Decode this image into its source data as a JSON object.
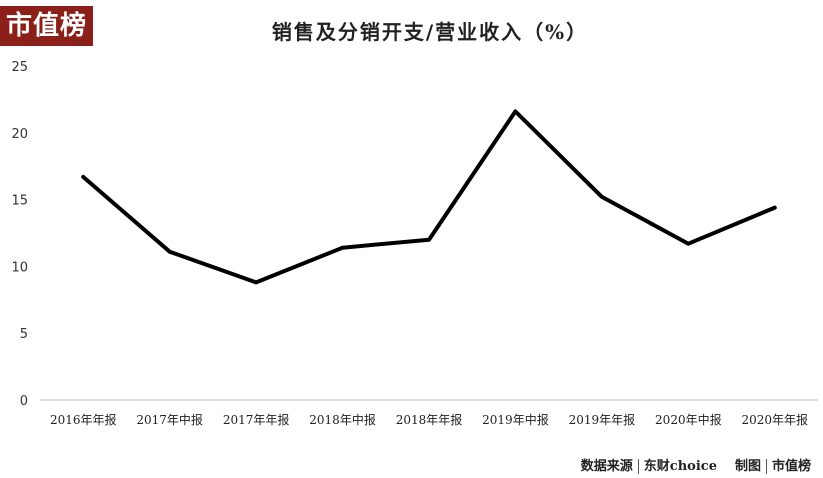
{
  "logo": {
    "text": "市值榜",
    "bg": "#8b1f1a"
  },
  "chart_data": {
    "type": "line",
    "title": "销售及分销开支/营业收入（%）",
    "categories": [
      "2016年年报",
      "2017年中报",
      "2017年年报",
      "2018年中报",
      "2018年年报",
      "2019年中报",
      "2019年年报",
      "2020年中报",
      "2020年年报"
    ],
    "series": [
      {
        "values": [
          16.7,
          11.1,
          8.8,
          11.4,
          12.0,
          21.6,
          15.2,
          11.7,
          14.4
        ],
        "color": "#000000"
      }
    ],
    "yticks": [
      0,
      5,
      10,
      15,
      20,
      25
    ],
    "ylim": [
      0,
      25
    ],
    "xlabel": "",
    "ylabel": "",
    "grid": false
  },
  "source": {
    "label": "数据来源",
    "provider": "东财choice",
    "made_by_label": "制图",
    "made_by": "市值榜"
  }
}
